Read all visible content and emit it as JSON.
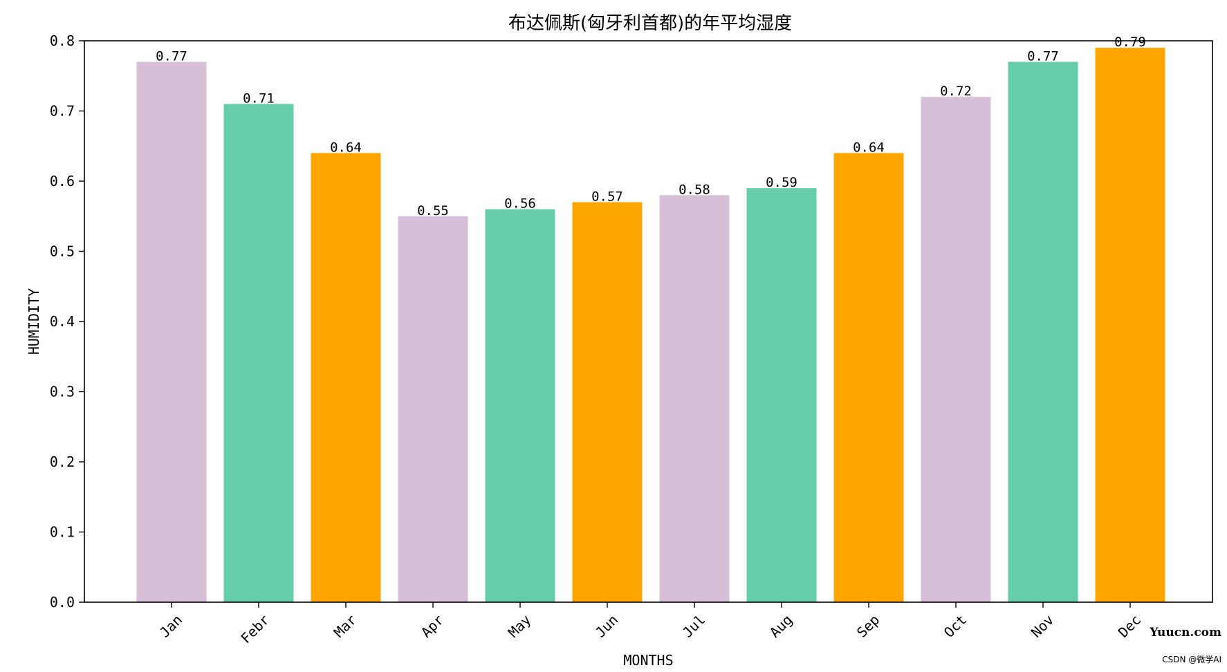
{
  "chart_data": {
    "type": "bar",
    "title": "布达佩斯(匈牙利首都)的年平均湿度",
    "xlabel": "MONTHS",
    "ylabel": "HUMIDITY",
    "categories": [
      "Jan",
      "Febr",
      "Mar",
      "Apr",
      "May",
      "Jun",
      "Jul",
      "Aug",
      "Sep",
      "Oct",
      "Nov",
      "Dec"
    ],
    "values": [
      0.77,
      0.71,
      0.64,
      0.55,
      0.56,
      0.57,
      0.58,
      0.59,
      0.64,
      0.72,
      0.77,
      0.79
    ],
    "value_labels": [
      "0.77",
      "0.71",
      "0.64",
      "0.55",
      "0.56",
      "0.57",
      "0.58",
      "0.59",
      "0.64",
      "0.72",
      "0.77",
      "0.79"
    ],
    "bar_colors": [
      "#d8bfd8",
      "#66cdaa",
      "#ffa500",
      "#d8bfd8",
      "#66cdaa",
      "#ffa500",
      "#d8bfd8",
      "#66cdaa",
      "#ffa500",
      "#d8bfd8",
      "#66cdaa",
      "#ffa500"
    ],
    "ylim": [
      0,
      0.8
    ],
    "yticks": [
      0.0,
      0.1,
      0.2,
      0.3,
      0.4,
      0.5,
      0.6,
      0.7,
      0.8
    ],
    "ytick_labels": [
      "0.0",
      "0.1",
      "0.2",
      "0.3",
      "0.4",
      "0.5",
      "0.6",
      "0.7",
      "0.8"
    ],
    "xtick_rotation_deg": 45,
    "grid": false,
    "legend": "none"
  },
  "watermark": {
    "site": "Yuucn.com",
    "credit": "CSDN @微学AI",
    "site_color": "#e0001b",
    "credit_color": "#888888"
  }
}
